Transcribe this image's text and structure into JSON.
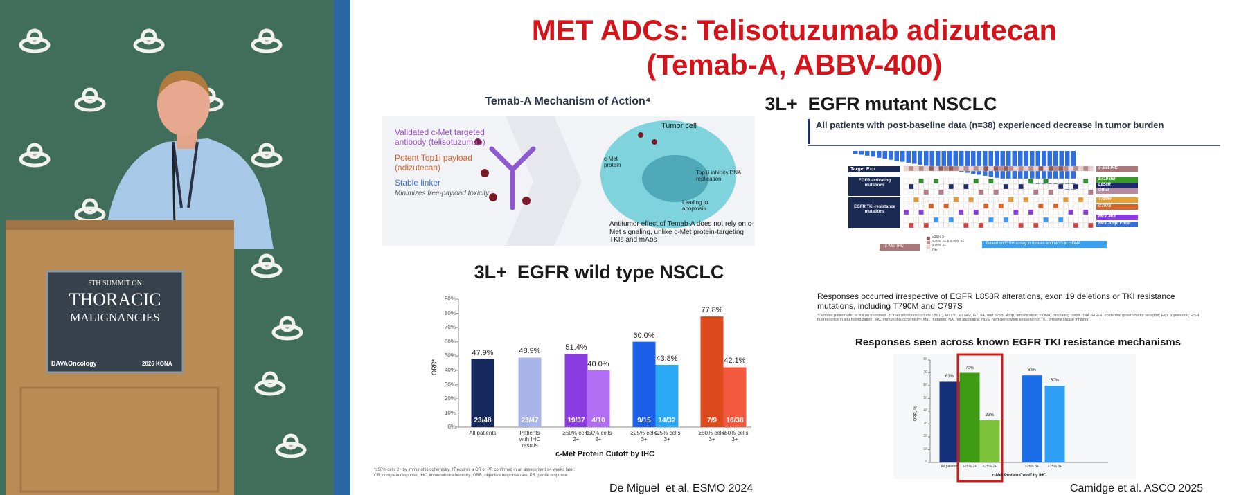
{
  "podium": {
    "line1": "5TH SUMMIT ON",
    "line2": "THORACIC",
    "line3": "MALIGNANCIES",
    "sponsor": "DAVAOncology",
    "event": "2026 KONA"
  },
  "slide": {
    "title": [
      "MET ADCs: Telisotuzumab adizutecan",
      "(Temab-A, ABBV-400)"
    ],
    "mechanism": {
      "heading": "Temab-A Mechanism of Action⁴",
      "antibody": "Validated c-Met targeted antibody (telisotuzumab)",
      "payload": "Potent Top1i payload (adizutecan)",
      "linker": "Stable linker",
      "linker_note": "Minimizes free-payload toxicity",
      "cell": "Tumor cell",
      "receptor": "c-Met protein",
      "dna": "Top1i inhibits DNA replication",
      "apoptosis": "Leading to apoptosis",
      "note": "Antitumor effect of Temab-A does not rely on c-Met signaling, unlike c-Met protein-targeting TKIs and mAbs"
    },
    "wild_type": {
      "heading": "3L+  EGFR wild type NSCLC",
      "chart": {
        "type": "bar",
        "x_label": "c-Met Protein Cutoff by IHC",
        "y_label": "ORR*",
        "categories": [
          "All patients",
          "Patients with IHC results",
          "≥50% cells 2+",
          "<50% cells 2+",
          "≥25% cells 3+",
          "<25% cells 3+",
          "≥50% cells 3+",
          "<50% cells 3+"
        ],
        "values": [
          47.9,
          48.9,
          51.4,
          40.0,
          60.0,
          43.8,
          77.8,
          42.1
        ],
        "value_labels": [
          "47.9%",
          "48.9%",
          "51.4%",
          "40.0%",
          "60.0%",
          "43.8%",
          "77.8%",
          "42.1%"
        ],
        "fractions": [
          "23/48",
          "23/47",
          "19/37",
          "4/10",
          "9/15",
          "14/32",
          "7/9",
          "16/38"
        ],
        "colors": [
          "#14285e",
          "#a9b5e8",
          "#8a3ce0",
          "#b26ef2",
          "#1c5ee8",
          "#2ba9f6",
          "#dc4a1e",
          "#f2593e"
        ],
        "ylim": [
          0,
          90
        ],
        "yticks": [
          {
            "value": 0,
            "label": "0%"
          },
          {
            "value": 10,
            "label": "10%"
          },
          {
            "value": 20,
            "label": "20%"
          },
          {
            "value": 30,
            "label": "30%"
          },
          {
            "value": 40,
            "label": "40%"
          },
          {
            "value": 50,
            "label": "50%"
          },
          {
            "value": 60,
            "label": "60%"
          },
          {
            "value": 70,
            "label": "70%"
          },
          {
            "value": 80,
            "label": "80%"
          },
          {
            "value": 90,
            "label": "90%"
          }
        ]
      },
      "footnotes": [
        "*≥50% cells 2+ by immunohistochemistry. †Requires a CR or PR confirmed in an assessment ≥4 weeks later.",
        "CR, complete response; IHC, immunohistochemistry; ORR, objective response rate; PR, partial response"
      ],
      "citation": "De Miguel  et al. ESMO 2024"
    },
    "mutant": {
      "heading": "3L+  EGFR mutant NSCLC",
      "summary": "All patients with post-baseline data (n=38) experienced decrease in tumor burden",
      "heatmap": {
        "rows": [
          "Target Exp",
          "EGFR activating mutations",
          "EGFR TKI-resistance mutations"
        ],
        "legend": [
          "c-Met IHC",
          "Ex19 del",
          "L858R",
          "Other",
          "T790M",
          "C797S",
          "MET Mut",
          "MET Amp/ Focal"
        ],
        "ihc_key": "c-Met IHC",
        "ihc_levels": [
          "≥25% 3+",
          "≥25% 2+ & <25% 3+",
          "<25% 2+",
          "NA"
        ],
        "assay_note": "Based on FISH assay in tissues and NGS in ctDNA"
      },
      "bullet": "Responses occurred irrespective of EGFR L858R alterations, exon 19 deletions or TKI resistance mutations, including T790M and C797S",
      "footnote": "*Denotes patient who is still on treatment. †Other mutations include L861Q, H773L, V774M, G719A, and S768I. Amp, amplification; ctDNA, circulating tumor DNA; EGFR, epidermal growth factor receptor; Exp, expression; FISH, fluorescence in situ hybridization; IHC, immunohistochemistry; Mut, mutation; NA, not applicable; NGS, next-generation sequencing; TKI, tyrosine kinase inhibitor.",
      "chart_heading": "Responses seen across known EGFR TKI resistance mechanisms",
      "chart": {
        "type": "bar",
        "x_label": "c-Met Protein Cutoff by IHC",
        "y_label": "ORR, %",
        "categories": [
          "All patients",
          "≥25% 2+",
          "<25% 2+",
          "≥25% 3+",
          "<25% 3+"
        ],
        "values": [
          63,
          70,
          33,
          68,
          60
        ],
        "value_labels": [
          "63%",
          "70%",
          "33%",
          "68%",
          "60%"
        ],
        "colors": [
          "#14307a",
          "#3f9a14",
          "#7cc23a",
          "#1c6ee8",
          "#2e9ff4"
        ],
        "ylim": [
          0,
          80
        ],
        "yticks": [
          0,
          10,
          20,
          30,
          40,
          50,
          60,
          70,
          80
        ]
      },
      "citation": "Camidge et al. ASCO 2025"
    }
  }
}
